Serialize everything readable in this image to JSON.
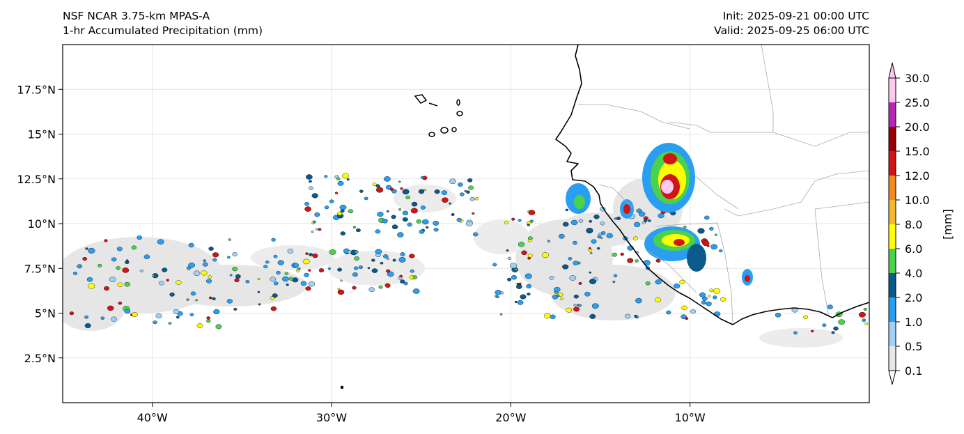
{
  "header": {
    "model": "NSF NCAR 3.75-km MPAS-A",
    "field": "1-hr Accumulated Precipitation (mm)",
    "init": "Init: 2025-09-21 00:00 UTC",
    "valid": "Valid: 2025-09-25 06:00 UTC"
  },
  "map": {
    "extent_lon": [
      -45,
      0
    ],
    "extent_lat": [
      0,
      20
    ],
    "lat_ticks": [
      {
        "value": 2.5,
        "label": "2.5°N"
      },
      {
        "value": 5,
        "label": "5°N"
      },
      {
        "value": 7.5,
        "label": "7.5°N"
      },
      {
        "value": 10,
        "label": "10°N"
      },
      {
        "value": 12.5,
        "label": "12.5°N"
      },
      {
        "value": 15,
        "label": "15°N"
      },
      {
        "value": 17.5,
        "label": "17.5°N"
      }
    ],
    "lon_ticks": [
      {
        "value": -40,
        "label": "40°W"
      },
      {
        "value": -30,
        "label": "30°W"
      },
      {
        "value": -20,
        "label": "20°W"
      },
      {
        "value": -10,
        "label": "10°W"
      }
    ]
  },
  "colorbar": {
    "label": "[mm]",
    "levels": [
      "0.1",
      "0.5",
      "1.0",
      "2.0",
      "4.0",
      "6.0",
      "8.0",
      "10.0",
      "12.0",
      "15.0",
      "20.0",
      "25.0",
      "30.0"
    ],
    "colors": [
      "#e8e8e8",
      "#9fd0f5",
      "#2a9ef0",
      "#0a5a8c",
      "#4bd24b",
      "#ffff00",
      "#f5b82e",
      "#f08c1e",
      "#d21414",
      "#960000",
      "#b428b4",
      "#ffc8f0"
    ]
  }
}
